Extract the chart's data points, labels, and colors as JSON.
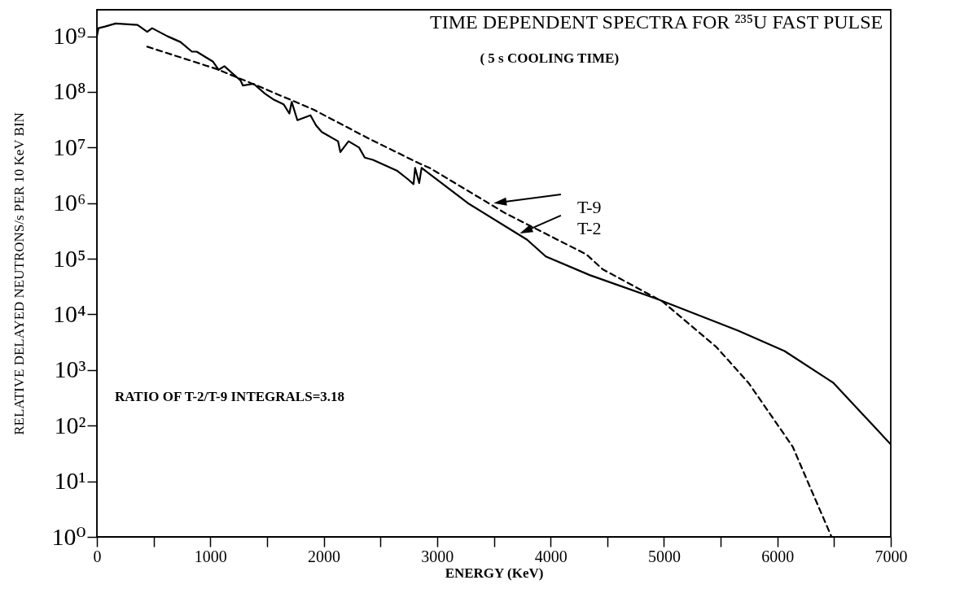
{
  "chart_data": {
    "type": "line",
    "title": "TIME DEPENDENT SPECTRA FOR ²³⁵U FAST PULSE",
    "subtitle": "( 5 s COOLING TIME)",
    "xlabel": "ENERGY (KeV)",
    "ylabel": "RELATIVE DELAYED NEUTRONS/s PER 10 KeV BIN",
    "annotations": [
      "RATIO OF T-2/T-9 INTEGRALS=3.18"
    ],
    "series": [
      {
        "name": "T-9",
        "color": "#000000",
        "line_style": "dashed",
        "x": [
          444,
          1052,
          1453,
          1911,
          2412,
          2842,
          2935,
          3601,
          4316,
          4459,
          4868,
          4989,
          5462,
          5748,
          6135,
          6299,
          6478
        ],
        "values": [
          650000000.0,
          260000000.0,
          120000000.0,
          48000000.0,
          14000000.0,
          5200000.0,
          4300000.0,
          660000.0,
          120000.0,
          65000.0,
          23000.0,
          17000.0,
          2600.0,
          580,
          42,
          7,
          1
        ]
      },
      {
        "name": "T-2",
        "color": "#000000",
        "line_style": "solid",
        "x": [
          0,
          14,
          72,
          165,
          358,
          444,
          487,
          623,
          737,
          838,
          880,
          1024,
          1074,
          1124,
          1267,
          1288,
          1382,
          1482,
          1553,
          1646,
          1697,
          1718,
          1768,
          1883,
          1933,
          1983,
          2126,
          2147,
          2219,
          2312,
          2362,
          2434,
          2649,
          2742,
          2792,
          2806,
          2842,
          2863,
          3271,
          3794,
          3958,
          4345,
          4939,
          5655,
          6063,
          6493,
          6850,
          7000
        ],
        "values": [
          1000000000.0,
          1400000000.0,
          1500000000.0,
          1700000000.0,
          1600000000.0,
          1200000000.0,
          1400000000.0,
          1000000000.0,
          790000000.0,
          530000000.0,
          530000000.0,
          350000000.0,
          250000000.0,
          290000000.0,
          160000000.0,
          130000000.0,
          140000000.0,
          93000000.0,
          74000000.0,
          60000000.0,
          41000000.0,
          66000000.0,
          31000000.0,
          38000000.0,
          25000000.0,
          19000000.0,
          13000000.0,
          8300000.0,
          13000000.0,
          10000000.0,
          6600000.0,
          6000000.0,
          3800000.0,
          2700000.0,
          2200000.0,
          4300000.0,
          2300000.0,
          4300000.0,
          1000000.0,
          220000.0,
          110000.0,
          51000.0,
          19000.0,
          5100.0,
          2200.0,
          590,
          98,
          46
        ]
      }
    ],
    "xlim": [
      0,
      7000
    ],
    "xticks": [
      0,
      {
        "value": 500,
        "label": null
      },
      1000,
      {
        "value": 1500,
        "label": null
      },
      2000,
      {
        "value": 2500,
        "label": null
      },
      3000,
      {
        "value": 3500,
        "label": null
      },
      4000,
      {
        "value": 4500,
        "label": null
      },
      5000,
      {
        "value": 5500,
        "label": null
      },
      6000,
      {
        "value": 6500,
        "label": null
      },
      7000
    ],
    "ylim": [
      1,
      3000000000.0
    ],
    "log": true,
    "yticks": [
      {
        "value": 1,
        "label": "10⁰"
      },
      {
        "value": 10,
        "label": "10¹"
      },
      {
        "value": 100,
        "label": "10²"
      },
      {
        "value": 1000,
        "label": "10³"
      },
      {
        "value": 10000,
        "label": "10⁴"
      },
      {
        "value": 100000,
        "label": "10⁵"
      },
      {
        "value": 1000000,
        "label": "10⁶"
      },
      {
        "value": 10000000,
        "label": "10⁷"
      },
      {
        "value": 100000000,
        "label": "10⁸"
      },
      {
        "value": 1000000000,
        "label": "10⁹"
      }
    ],
    "grid": false,
    "legend": "right"
  }
}
